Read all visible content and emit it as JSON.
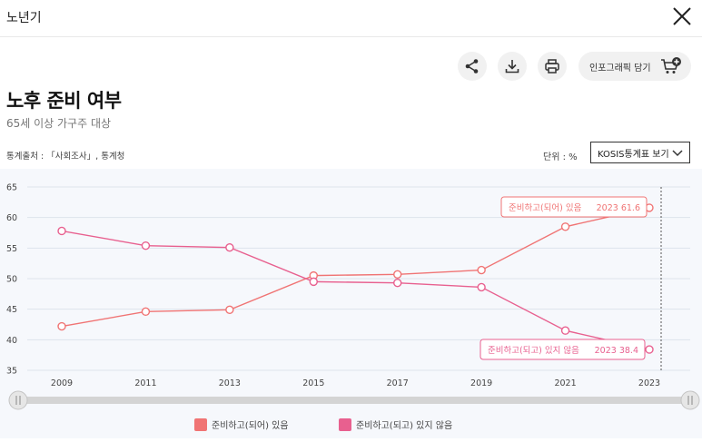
{
  "header": {
    "title": "노년기",
    "close_icon": "close-icon"
  },
  "toolbar": {
    "share_icon": "share-icon",
    "download_icon": "download-icon",
    "print_icon": "print-icon",
    "infographic_label": "인포그래픽 담기",
    "infographic_icon": "cart-plus-icon"
  },
  "page": {
    "title": "노후 준비 여부",
    "subtitle": "65세 이상 가구주 대상",
    "source": "통계출처 : 「사회조사」, 통계청",
    "unit": "단위 : %",
    "kosis_label": "KOSIS통계표 보기"
  },
  "colors": {
    "series1": "#f07474",
    "series2": "#e8608f",
    "grid": "#dde3ec"
  },
  "chart_data": {
    "type": "line",
    "title": "노후 준비 여부",
    "xlabel": "",
    "ylabel": "",
    "ylim": [
      35,
      65
    ],
    "yticks": [
      35,
      40,
      45,
      50,
      55,
      60,
      65
    ],
    "x": [
      "2009",
      "2011",
      "2013",
      "2015",
      "2017",
      "2019",
      "2021",
      "2023"
    ],
    "grid": true,
    "legend_position": "bottom",
    "series": [
      {
        "name": "준비하고(되어) 있음",
        "values": [
          42.2,
          44.6,
          44.9,
          50.5,
          50.7,
          51.4,
          58.5,
          61.6
        ]
      },
      {
        "name": "준비하고(되고) 있지 않음",
        "values": [
          57.8,
          55.4,
          55.1,
          49.5,
          49.3,
          48.6,
          41.5,
          38.4
        ]
      }
    ],
    "annotations": [
      {
        "series": 0,
        "label": "준비하고(되어) 있음",
        "year": "2023",
        "value": "61.6"
      },
      {
        "series": 1,
        "label": "준비하고(되고) 있지 않음",
        "year": "2023",
        "value": "38.4"
      }
    ]
  }
}
